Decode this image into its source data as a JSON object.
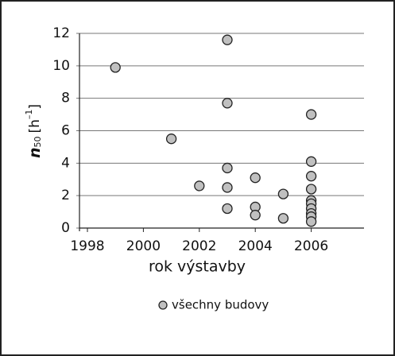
{
  "chart_data": {
    "type": "scatter",
    "xlabel": "rok výstavby",
    "ylabel_parts": {
      "symbol": "n",
      "subscript": "50",
      "unit": "[h",
      "superscript": "–1",
      "close": "]"
    },
    "x": [
      1999,
      2001,
      2002,
      2003,
      2003,
      2003,
      2003,
      2003,
      2004,
      2004,
      2004,
      2005,
      2005,
      2006,
      2006,
      2006,
      2006,
      2006,
      2006,
      2006,
      2006,
      2006,
      2006
    ],
    "series": [
      {
        "name": "všechny budovy",
        "color": "#c0c0c0",
        "values": [
          9.9,
          5.5,
          2.6,
          11.6,
          7.7,
          3.7,
          2.5,
          1.2,
          3.1,
          1.3,
          0.8,
          2.1,
          0.6,
          7.0,
          4.1,
          3.2,
          2.4,
          1.7,
          1.5,
          1.2,
          0.9,
          0.7,
          0.4
        ]
      }
    ],
    "xlim": [
      1998,
      2008
    ],
    "xticks": [
      1998,
      2000,
      2002,
      2004,
      2006
    ],
    "ylim": [
      0,
      12
    ],
    "yticks": [
      0,
      2,
      4,
      6,
      8,
      10,
      12
    ],
    "grid": true,
    "legend": "bottom"
  }
}
